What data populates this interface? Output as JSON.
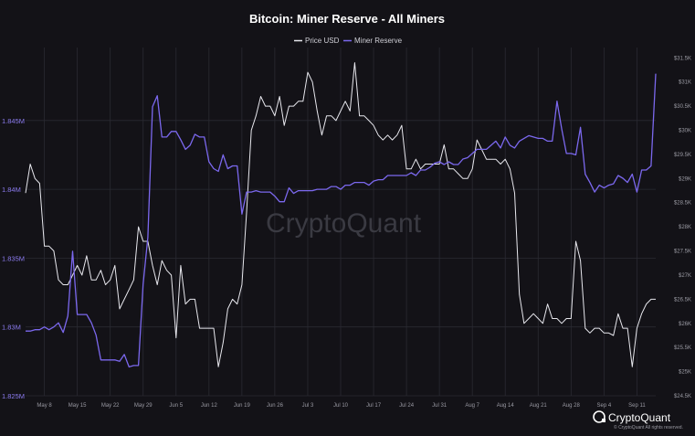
{
  "page": {
    "watermark": "CryptoQuant",
    "brand": "CryptoQuant",
    "copyright": "© CryptoQuant All rights reserved."
  },
  "colors": {
    "price": "#e8e8ee",
    "reserve": "#7b68ee",
    "background": "#131217"
  },
  "chart_data": {
    "type": "line",
    "title": "Bitcoin: Miner Reserve - All Miners",
    "legend": {
      "placement": "top-center"
    },
    "grid": true,
    "x_ticks": [
      "May 8",
      "May 15",
      "May 22",
      "May 29",
      "Jun 5",
      "Jun 12",
      "Jun 19",
      "Jun 26",
      "Jul 3",
      "Jul 10",
      "Jul 17",
      "Jul 24",
      "Jul 31",
      "Aug 7",
      "Aug 14",
      "Aug 21",
      "Aug 28",
      "Sep 4",
      "Sep 11"
    ],
    "x_range": [
      "May 4",
      "Sep 15"
    ],
    "y_left": {
      "ticks": [
        "1.825M",
        "1.83M",
        "1.835M",
        "1.84M",
        "1.845M"
      ],
      "ylim": [
        1.825,
        1.8499
      ]
    },
    "y_right": {
      "ticks": [
        "$24.5K",
        "$25K",
        "$25.5K",
        "$26K",
        "$26.5K",
        "$27K",
        "$27.5K",
        "$28K",
        "$28.5K",
        "$29K",
        "$29.5K",
        "$30K",
        "$30.5K",
        "$31K",
        "$31.5K"
      ],
      "ylim": [
        24500,
        31600
      ]
    },
    "series": [
      {
        "name": "Price USD",
        "axis": "right",
        "points": [
          [
            "May 4",
            28700
          ],
          [
            "May 5",
            29300
          ],
          [
            "May 6",
            29000
          ],
          [
            "May 7",
            28900
          ],
          [
            "May 8",
            27600
          ],
          [
            "May 9",
            27600
          ],
          [
            "May 10",
            27500
          ],
          [
            "May 11",
            26900
          ],
          [
            "May 12",
            26800
          ],
          [
            "May 13",
            26800
          ],
          [
            "May 14",
            27000
          ],
          [
            "May 15",
            27200
          ],
          [
            "May 16",
            27000
          ],
          [
            "May 17",
            27400
          ],
          [
            "May 18",
            26900
          ],
          [
            "May 19",
            26900
          ],
          [
            "May 20",
            27100
          ],
          [
            "May 21",
            26800
          ],
          [
            "May 22",
            26900
          ],
          [
            "May 23",
            27200
          ],
          [
            "May 24",
            26300
          ],
          [
            "May 25",
            26500
          ],
          [
            "May 26",
            26700
          ],
          [
            "May 27",
            26900
          ],
          [
            "May 28",
            28000
          ],
          [
            "May 29",
            27700
          ],
          [
            "May 30",
            27700
          ],
          [
            "May 31",
            27200
          ],
          [
            "Jun 1",
            26800
          ],
          [
            "Jun 2",
            27300
          ],
          [
            "Jun 3",
            27100
          ],
          [
            "Jun 4",
            27000
          ],
          [
            "Jun 5",
            25700
          ],
          [
            "Jun 6",
            27200
          ],
          [
            "Jun 7",
            26400
          ],
          [
            "Jun 8",
            26500
          ],
          [
            "Jun 9",
            26500
          ],
          [
            "Jun 10",
            25900
          ],
          [
            "Jun 11",
            25900
          ],
          [
            "Jun 12",
            25900
          ],
          [
            "Jun 13",
            25900
          ],
          [
            "Jun 14",
            25100
          ],
          [
            "Jun 15",
            25600
          ],
          [
            "Jun 16",
            26300
          ],
          [
            "Jun 17",
            26500
          ],
          [
            "Jun 18",
            26400
          ],
          [
            "Jun 19",
            26800
          ],
          [
            "Jun 20",
            28300
          ],
          [
            "Jun 21",
            30000
          ],
          [
            "Jun 22",
            30300
          ],
          [
            "Jun 23",
            30700
          ],
          [
            "Jun 24",
            30500
          ],
          [
            "Jun 25",
            30500
          ],
          [
            "Jun 26",
            30300
          ],
          [
            "Jun 27",
            30700
          ],
          [
            "Jun 28",
            30100
          ],
          [
            "Jun 29",
            30500
          ],
          [
            "Jun 30",
            30500
          ],
          [
            "Jul 1",
            30600
          ],
          [
            "Jul 2",
            30600
          ],
          [
            "Jul 3",
            31200
          ],
          [
            "Jul 4",
            31000
          ],
          [
            "Jul 5",
            30400
          ],
          [
            "Jul 6",
            29900
          ],
          [
            "Jul 7",
            30300
          ],
          [
            "Jul 8",
            30300
          ],
          [
            "Jul 9",
            30200
          ],
          [
            "Jul 10",
            30400
          ],
          [
            "Jul 11",
            30600
          ],
          [
            "Jul 12",
            30400
          ],
          [
            "Jul 13",
            31400
          ],
          [
            "Jul 14",
            30300
          ],
          [
            "Jul 15",
            30300
          ],
          [
            "Jul 16",
            30200
          ],
          [
            "Jul 17",
            30100
          ],
          [
            "Jul 18",
            29900
          ],
          [
            "Jul 19",
            29800
          ],
          [
            "Jul 20",
            29900
          ],
          [
            "Jul 21",
            29800
          ],
          [
            "Jul 22",
            29900
          ],
          [
            "Jul 23",
            30100
          ],
          [
            "Jul 24",
            29200
          ],
          [
            "Jul 25",
            29200
          ],
          [
            "Jul 26",
            29400
          ],
          [
            "Jul 27",
            29200
          ],
          [
            "Jul 28",
            29300
          ],
          [
            "Jul 29",
            29300
          ],
          [
            "Jul 30",
            29300
          ],
          [
            "Jul 31",
            29300
          ],
          [
            "Aug 1",
            29700
          ],
          [
            "Aug 2",
            29200
          ],
          [
            "Aug 3",
            29200
          ],
          [
            "Aug 4",
            29100
          ],
          [
            "Aug 5",
            29000
          ],
          [
            "Aug 6",
            29000
          ],
          [
            "Aug 7",
            29200
          ],
          [
            "Aug 8",
            29800
          ],
          [
            "Aug 9",
            29600
          ],
          [
            "Aug 10",
            29400
          ],
          [
            "Aug 11",
            29400
          ],
          [
            "Aug 12",
            29400
          ],
          [
            "Aug 13",
            29300
          ],
          [
            "Aug 14",
            29400
          ],
          [
            "Aug 15",
            29200
          ],
          [
            "Aug 16",
            28700
          ],
          [
            "Aug 17",
            26600
          ],
          [
            "Aug 18",
            26000
          ],
          [
            "Aug 19",
            26100
          ],
          [
            "Aug 20",
            26200
          ],
          [
            "Aug 21",
            26100
          ],
          [
            "Aug 22",
            26000
          ],
          [
            "Aug 23",
            26400
          ],
          [
            "Aug 24",
            26100
          ],
          [
            "Aug 25",
            26100
          ],
          [
            "Aug 26",
            26000
          ],
          [
            "Aug 27",
            26100
          ],
          [
            "Aug 28",
            26100
          ],
          [
            "Aug 29",
            27700
          ],
          [
            "Aug 30",
            27300
          ],
          [
            "Aug 31",
            25900
          ],
          [
            "Sep 1",
            25800
          ],
          [
            "Sep 2",
            25900
          ],
          [
            "Sep 3",
            25900
          ],
          [
            "Sep 4",
            25800
          ],
          [
            "Sep 5",
            25800
          ],
          [
            "Sep 6",
            25750
          ],
          [
            "Sep 7",
            26200
          ],
          [
            "Sep 8",
            25900
          ],
          [
            "Sep 9",
            25900
          ],
          [
            "Sep 10",
            25100
          ],
          [
            "Sep 11",
            25900
          ],
          [
            "Sep 12",
            26200
          ],
          [
            "Sep 13",
            26400
          ],
          [
            "Sep 14",
            26500
          ],
          [
            "Sep 15",
            26500
          ]
        ]
      },
      {
        "name": "Miner Reserve",
        "axis": "left",
        "points": [
          [
            "May 4",
            1.8297
          ],
          [
            "May 5",
            1.8297
          ],
          [
            "May 6",
            1.8298
          ],
          [
            "May 7",
            1.8298
          ],
          [
            "May 8",
            1.83
          ],
          [
            "May 9",
            1.8298
          ],
          [
            "May 10",
            1.83
          ],
          [
            "May 11",
            1.8303
          ],
          [
            "May 12",
            1.8296
          ],
          [
            "May 13",
            1.8308
          ],
          [
            "May 14",
            1.8355
          ],
          [
            "May 15",
            1.8309
          ],
          [
            "May 16",
            1.8309
          ],
          [
            "May 17",
            1.8309
          ],
          [
            "May 18",
            1.8303
          ],
          [
            "May 19",
            1.8294
          ],
          [
            "May 20",
            1.8276
          ],
          [
            "May 21",
            1.8276
          ],
          [
            "May 22",
            1.8276
          ],
          [
            "May 23",
            1.8276
          ],
          [
            "May 24",
            1.8275
          ],
          [
            "May 25",
            1.828
          ],
          [
            "May 26",
            1.8271
          ],
          [
            "May 27",
            1.8272
          ],
          [
            "May 28",
            1.8272
          ],
          [
            "May 29",
            1.8331
          ],
          [
            "May 30",
            1.8365
          ],
          [
            "May 31",
            1.846
          ],
          [
            "Jun 1",
            1.8468
          ],
          [
            "Jun 2",
            1.8438
          ],
          [
            "Jun 3",
            1.8438
          ],
          [
            "Jun 4",
            1.8442
          ],
          [
            "Jun 5",
            1.8442
          ],
          [
            "Jun 6",
            1.8436
          ],
          [
            "Jun 7",
            1.8429
          ],
          [
            "Jun 8",
            1.8432
          ],
          [
            "Jun 9",
            1.844
          ],
          [
            "Jun 10",
            1.8438
          ],
          [
            "Jun 11",
            1.8438
          ],
          [
            "Jun 12",
            1.842
          ],
          [
            "Jun 13",
            1.8415
          ],
          [
            "Jun 14",
            1.8413
          ],
          [
            "Jun 15",
            1.8425
          ],
          [
            "Jun 16",
            1.8415
          ],
          [
            "Jun 17",
            1.8417
          ],
          [
            "Jun 18",
            1.8417
          ],
          [
            "Jun 19",
            1.8382
          ],
          [
            "Jun 20",
            1.8398
          ],
          [
            "Jun 21",
            1.8398
          ],
          [
            "Jun 22",
            1.8399
          ],
          [
            "Jun 23",
            1.8398
          ],
          [
            "Jun 24",
            1.8398
          ],
          [
            "Jun 25",
            1.8398
          ],
          [
            "Jun 26",
            1.8395
          ],
          [
            "Jun 27",
            1.8391
          ],
          [
            "Jun 28",
            1.8391
          ],
          [
            "Jun 29",
            1.8401
          ],
          [
            "Jun 30",
            1.8397
          ],
          [
            "Jul 1",
            1.8399
          ],
          [
            "Jul 2",
            1.8399
          ],
          [
            "Jul 3",
            1.8399
          ],
          [
            "Jul 4",
            1.8399
          ],
          [
            "Jul 5",
            1.84
          ],
          [
            "Jul 6",
            1.84
          ],
          [
            "Jul 7",
            1.84
          ],
          [
            "Jul 8",
            1.8402
          ],
          [
            "Jul 9",
            1.8402
          ],
          [
            "Jul 10",
            1.84
          ],
          [
            "Jul 11",
            1.8403
          ],
          [
            "Jul 12",
            1.8403
          ],
          [
            "Jul 13",
            1.8405
          ],
          [
            "Jul 14",
            1.8405
          ],
          [
            "Jul 15",
            1.8405
          ],
          [
            "Jul 16",
            1.8403
          ],
          [
            "Jul 17",
            1.8406
          ],
          [
            "Jul 18",
            1.8407
          ],
          [
            "Jul 19",
            1.8407
          ],
          [
            "Jul 20",
            1.841
          ],
          [
            "Jul 21",
            1.841
          ],
          [
            "Jul 22",
            1.841
          ],
          [
            "Jul 23",
            1.841
          ],
          [
            "Jul 24",
            1.841
          ],
          [
            "Jul 25",
            1.8412
          ],
          [
            "Jul 26",
            1.841
          ],
          [
            "Jul 27",
            1.8414
          ],
          [
            "Jul 28",
            1.8414
          ],
          [
            "Jul 29",
            1.8416
          ],
          [
            "Jul 30",
            1.8419
          ],
          [
            "Jul 31",
            1.842
          ],
          [
            "Aug 1",
            1.8418
          ],
          [
            "Aug 2",
            1.842
          ],
          [
            "Aug 3",
            1.8418
          ],
          [
            "Aug 4",
            1.8418
          ],
          [
            "Aug 5",
            1.8422
          ],
          [
            "Aug 6",
            1.8423
          ],
          [
            "Aug 7",
            1.8426
          ],
          [
            "Aug 8",
            1.8429
          ],
          [
            "Aug 9",
            1.8429
          ],
          [
            "Aug 10",
            1.8429
          ],
          [
            "Aug 11",
            1.8432
          ],
          [
            "Aug 12",
            1.8435
          ],
          [
            "Aug 13",
            1.843
          ],
          [
            "Aug 14",
            1.8438
          ],
          [
            "Aug 15",
            1.8432
          ],
          [
            "Aug 16",
            1.843
          ],
          [
            "Aug 17",
            1.8435
          ],
          [
            "Aug 18",
            1.8437
          ],
          [
            "Aug 19",
            1.8439
          ],
          [
            "Aug 20",
            1.8438
          ],
          [
            "Aug 21",
            1.8437
          ],
          [
            "Aug 22",
            1.8437
          ],
          [
            "Aug 23",
            1.8435
          ],
          [
            "Aug 24",
            1.8435
          ],
          [
            "Aug 25",
            1.8464
          ],
          [
            "Aug 26",
            1.8444
          ],
          [
            "Aug 27",
            1.8426
          ],
          [
            "Aug 28",
            1.8426
          ],
          [
            "Aug 29",
            1.8425
          ],
          [
            "Aug 30",
            1.8445
          ],
          [
            "Aug 31",
            1.8411
          ],
          [
            "Sep 1",
            1.8405
          ],
          [
            "Sep 2",
            1.8398
          ],
          [
            "Sep 3",
            1.8403
          ],
          [
            "Sep 4",
            1.8401
          ],
          [
            "Sep 5",
            1.8403
          ],
          [
            "Sep 6",
            1.8404
          ],
          [
            "Sep 7",
            1.841
          ],
          [
            "Sep 8",
            1.8408
          ],
          [
            "Sep 9",
            1.8405
          ],
          [
            "Sep 10",
            1.8411
          ],
          [
            "Sep 11",
            1.8398
          ],
          [
            "Sep 12",
            1.8414
          ],
          [
            "Sep 13",
            1.8414
          ],
          [
            "Sep 14",
            1.8417
          ],
          [
            "Sep 15",
            1.8484
          ]
        ]
      }
    ]
  }
}
